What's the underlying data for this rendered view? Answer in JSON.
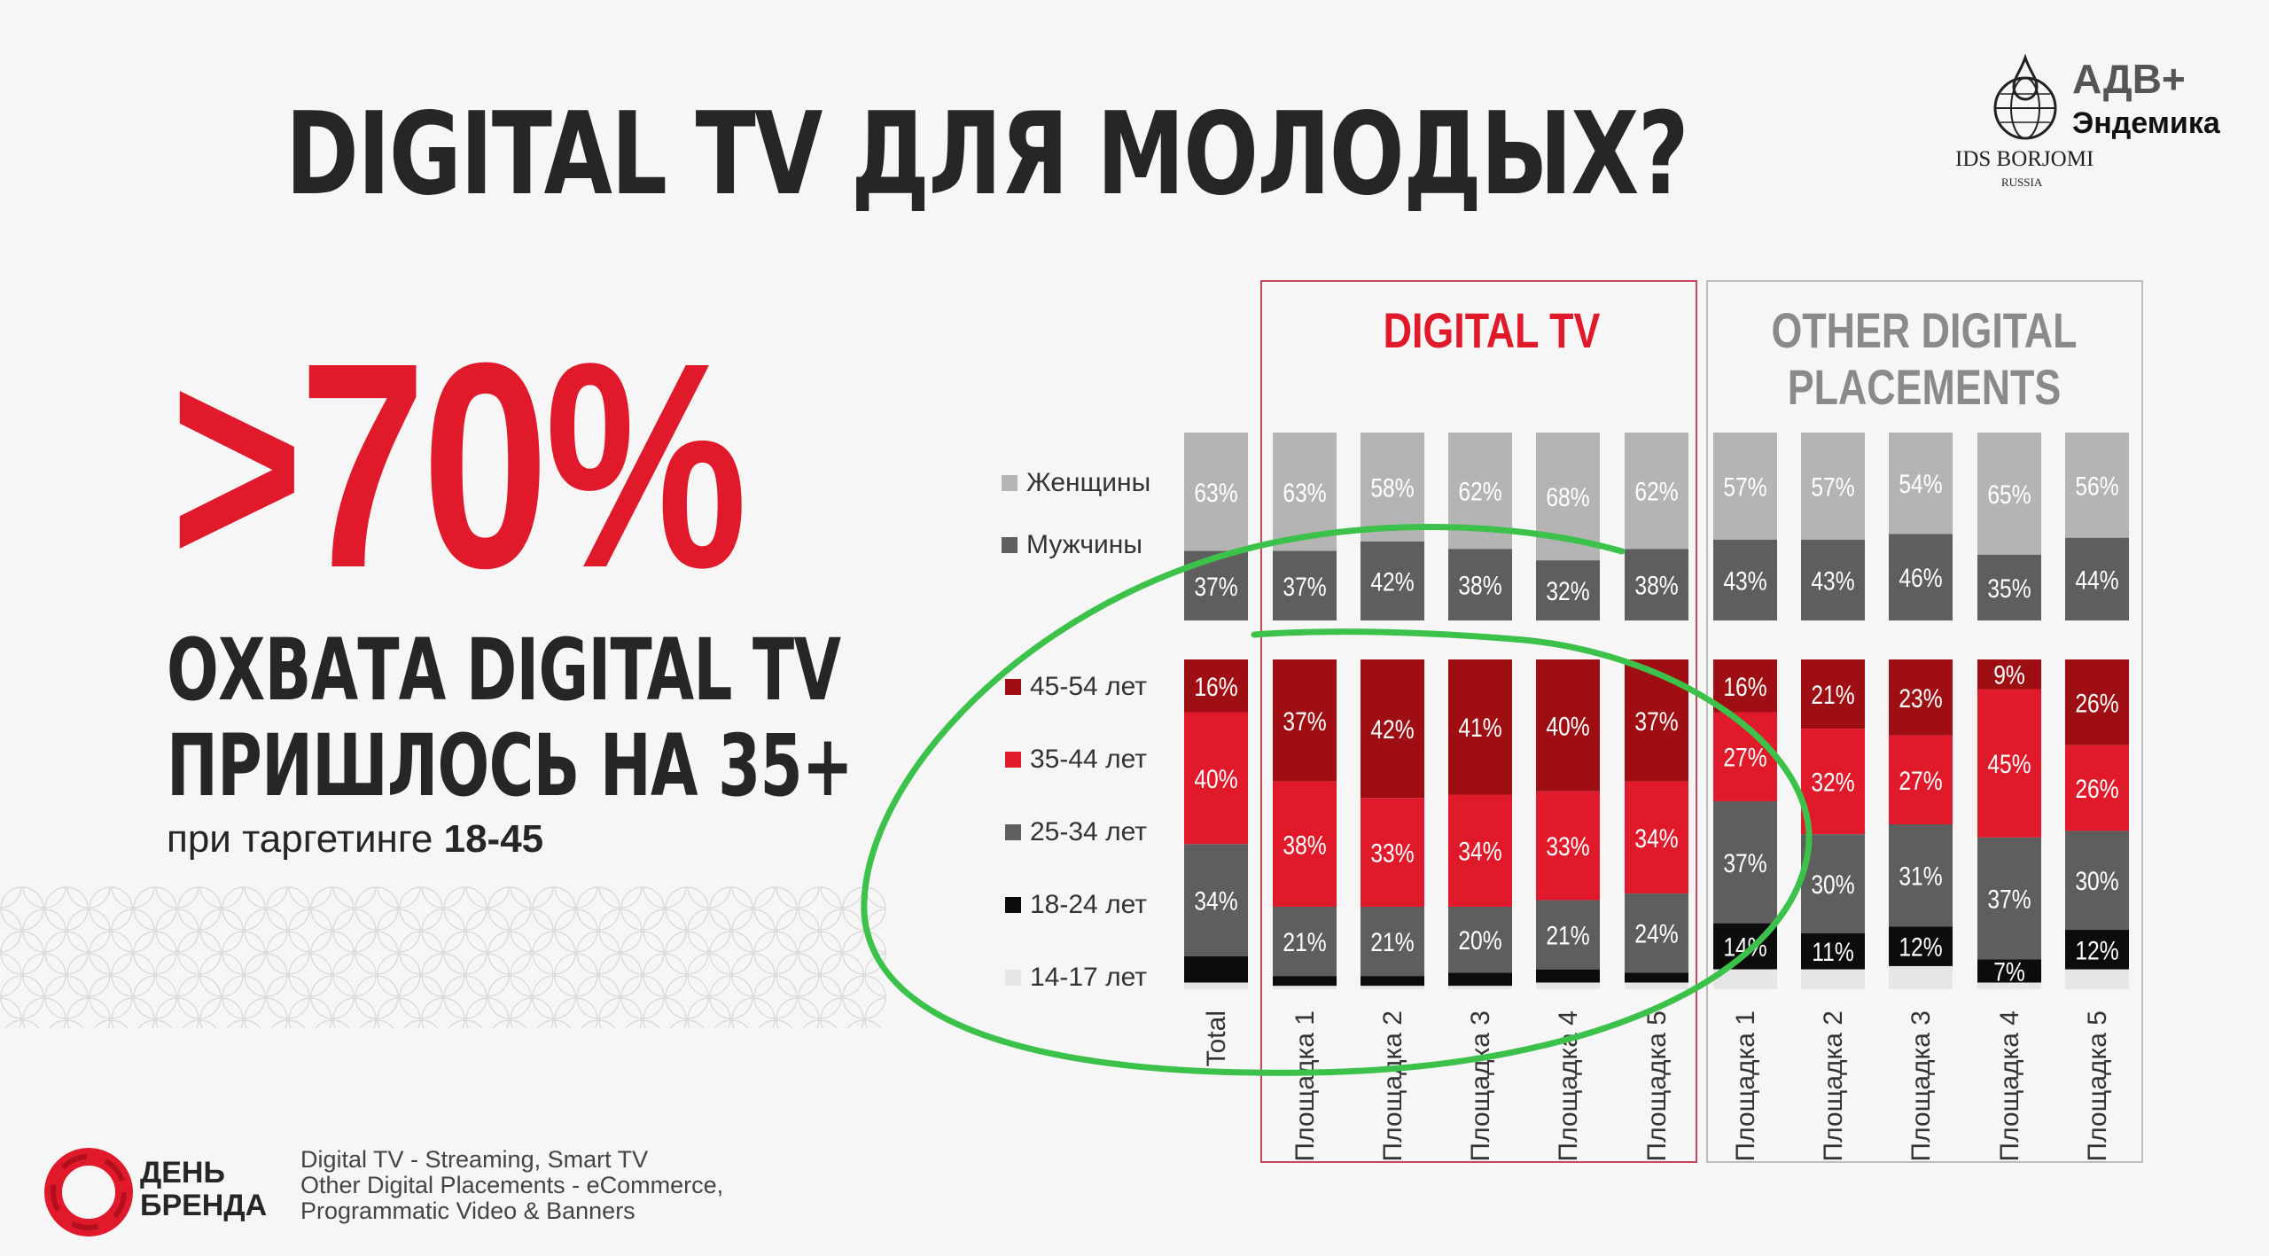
{
  "title": "DIGITAL TV ДЛЯ МОЛОДЫХ?",
  "big_percent": ">70%",
  "headline_line1": "ОХВАТА DIGITAL TV",
  "headline_line2": "ПРИШЛОСЬ НА 35+",
  "sub_prefix": "при таргетинге ",
  "sub_bold": "18-45",
  "brand": {
    "line1": "ДЕНЬ",
    "line2": "БРЕНДА",
    "logo_icon": "red-ring-logo-icon"
  },
  "partner_logo": {
    "line1": "АДВ+",
    "line2": "Эндемика",
    "line3": "IDS BORJOMI",
    "line4": "RUSSIA",
    "icon": "globe-drop-icon"
  },
  "footnote": [
    "Digital TV -  Streaming, Smart TV",
    "Other Digital Placements - eCommerce,",
    "Programmatic Video & Banners"
  ],
  "colors": {
    "accent_red": "#e11a2b",
    "dark_red": "#9e0e12",
    "dark_gray": "#5e5e5e",
    "light_gray": "#b4b4b4",
    "black": "#0c0c0c",
    "very_light_gray": "#e6e6e6",
    "green_annotation": "#3cc24a",
    "group_title_gray": "#8a8a8a"
  },
  "chart_data": {
    "type": "bar",
    "stacked": true,
    "groups": [
      {
        "title": "",
        "categories": [
          "Total"
        ]
      },
      {
        "title": "DIGITAL TV",
        "categories": [
          "Площадка 1",
          "Площадка 2",
          "Площадка 3",
          "Площадка 4",
          "Площадка 5"
        ]
      },
      {
        "title": "OTHER DIGITAL PLACEMENTS",
        "categories": [
          "Площадка 1",
          "Площадка 2",
          "Площадка 3",
          "Площадка 4",
          "Площадка 5"
        ]
      }
    ],
    "categories": [
      "Total",
      "Площадка 1",
      "Площадка 2",
      "Площадка 3",
      "Площадка 4",
      "Площадка 5",
      "Площадка 1",
      "Площадка 2",
      "Площадка 3",
      "Площадка 4",
      "Площадка 5"
    ],
    "gender": {
      "series": [
        {
          "name": "Женщины",
          "values": [
            63,
            63,
            58,
            62,
            68,
            62,
            57,
            57,
            54,
            65,
            56
          ]
        },
        {
          "name": "Мужчины",
          "values": [
            37,
            37,
            42,
            38,
            32,
            38,
            43,
            43,
            46,
            35,
            44
          ]
        }
      ]
    },
    "age": {
      "series": [
        {
          "name": "45-54 лет",
          "values": [
            16,
            37,
            42,
            41,
            40,
            37,
            16,
            21,
            23,
            9,
            26
          ]
        },
        {
          "name": "35-44 лет",
          "values": [
            40,
            38,
            33,
            34,
            33,
            34,
            27,
            32,
            27,
            45,
            26
          ]
        },
        {
          "name": "25-34 лет",
          "values": [
            34,
            21,
            21,
            20,
            21,
            24,
            37,
            30,
            31,
            37,
            30
          ]
        },
        {
          "name": "18-24 лет",
          "values": [
            8,
            3,
            3,
            4,
            4,
            3,
            14,
            11,
            12,
            7,
            12
          ]
        },
        {
          "name": "14-17 лет",
          "values": [
            2,
            1,
            1,
            1,
            2,
            2,
            6,
            6,
            7,
            2,
            6
          ]
        }
      ],
      "labels": [
        [
          "16%",
          "37%",
          "42%",
          "41%",
          "40%",
          "37%",
          "16%",
          "21%",
          "23%",
          "9%",
          "26%"
        ],
        [
          "40%",
          "38%",
          "33%",
          "34%",
          "33%",
          "34%",
          "27%",
          "32%",
          "27%",
          "45%",
          "26%"
        ],
        [
          "34%",
          "21%",
          "21%",
          "20%",
          "21%",
          "24%",
          "37%",
          "30%",
          "31%",
          "37%",
          "30%"
        ],
        [
          "",
          "",
          "",
          "",
          "",
          "",
          "14%",
          "11%",
          "12%",
          "7%",
          "12%"
        ],
        [
          "",
          "",
          "",
          "",
          "",
          "",
          "",
          "",
          "",
          "",
          ""
        ]
      ]
    }
  }
}
